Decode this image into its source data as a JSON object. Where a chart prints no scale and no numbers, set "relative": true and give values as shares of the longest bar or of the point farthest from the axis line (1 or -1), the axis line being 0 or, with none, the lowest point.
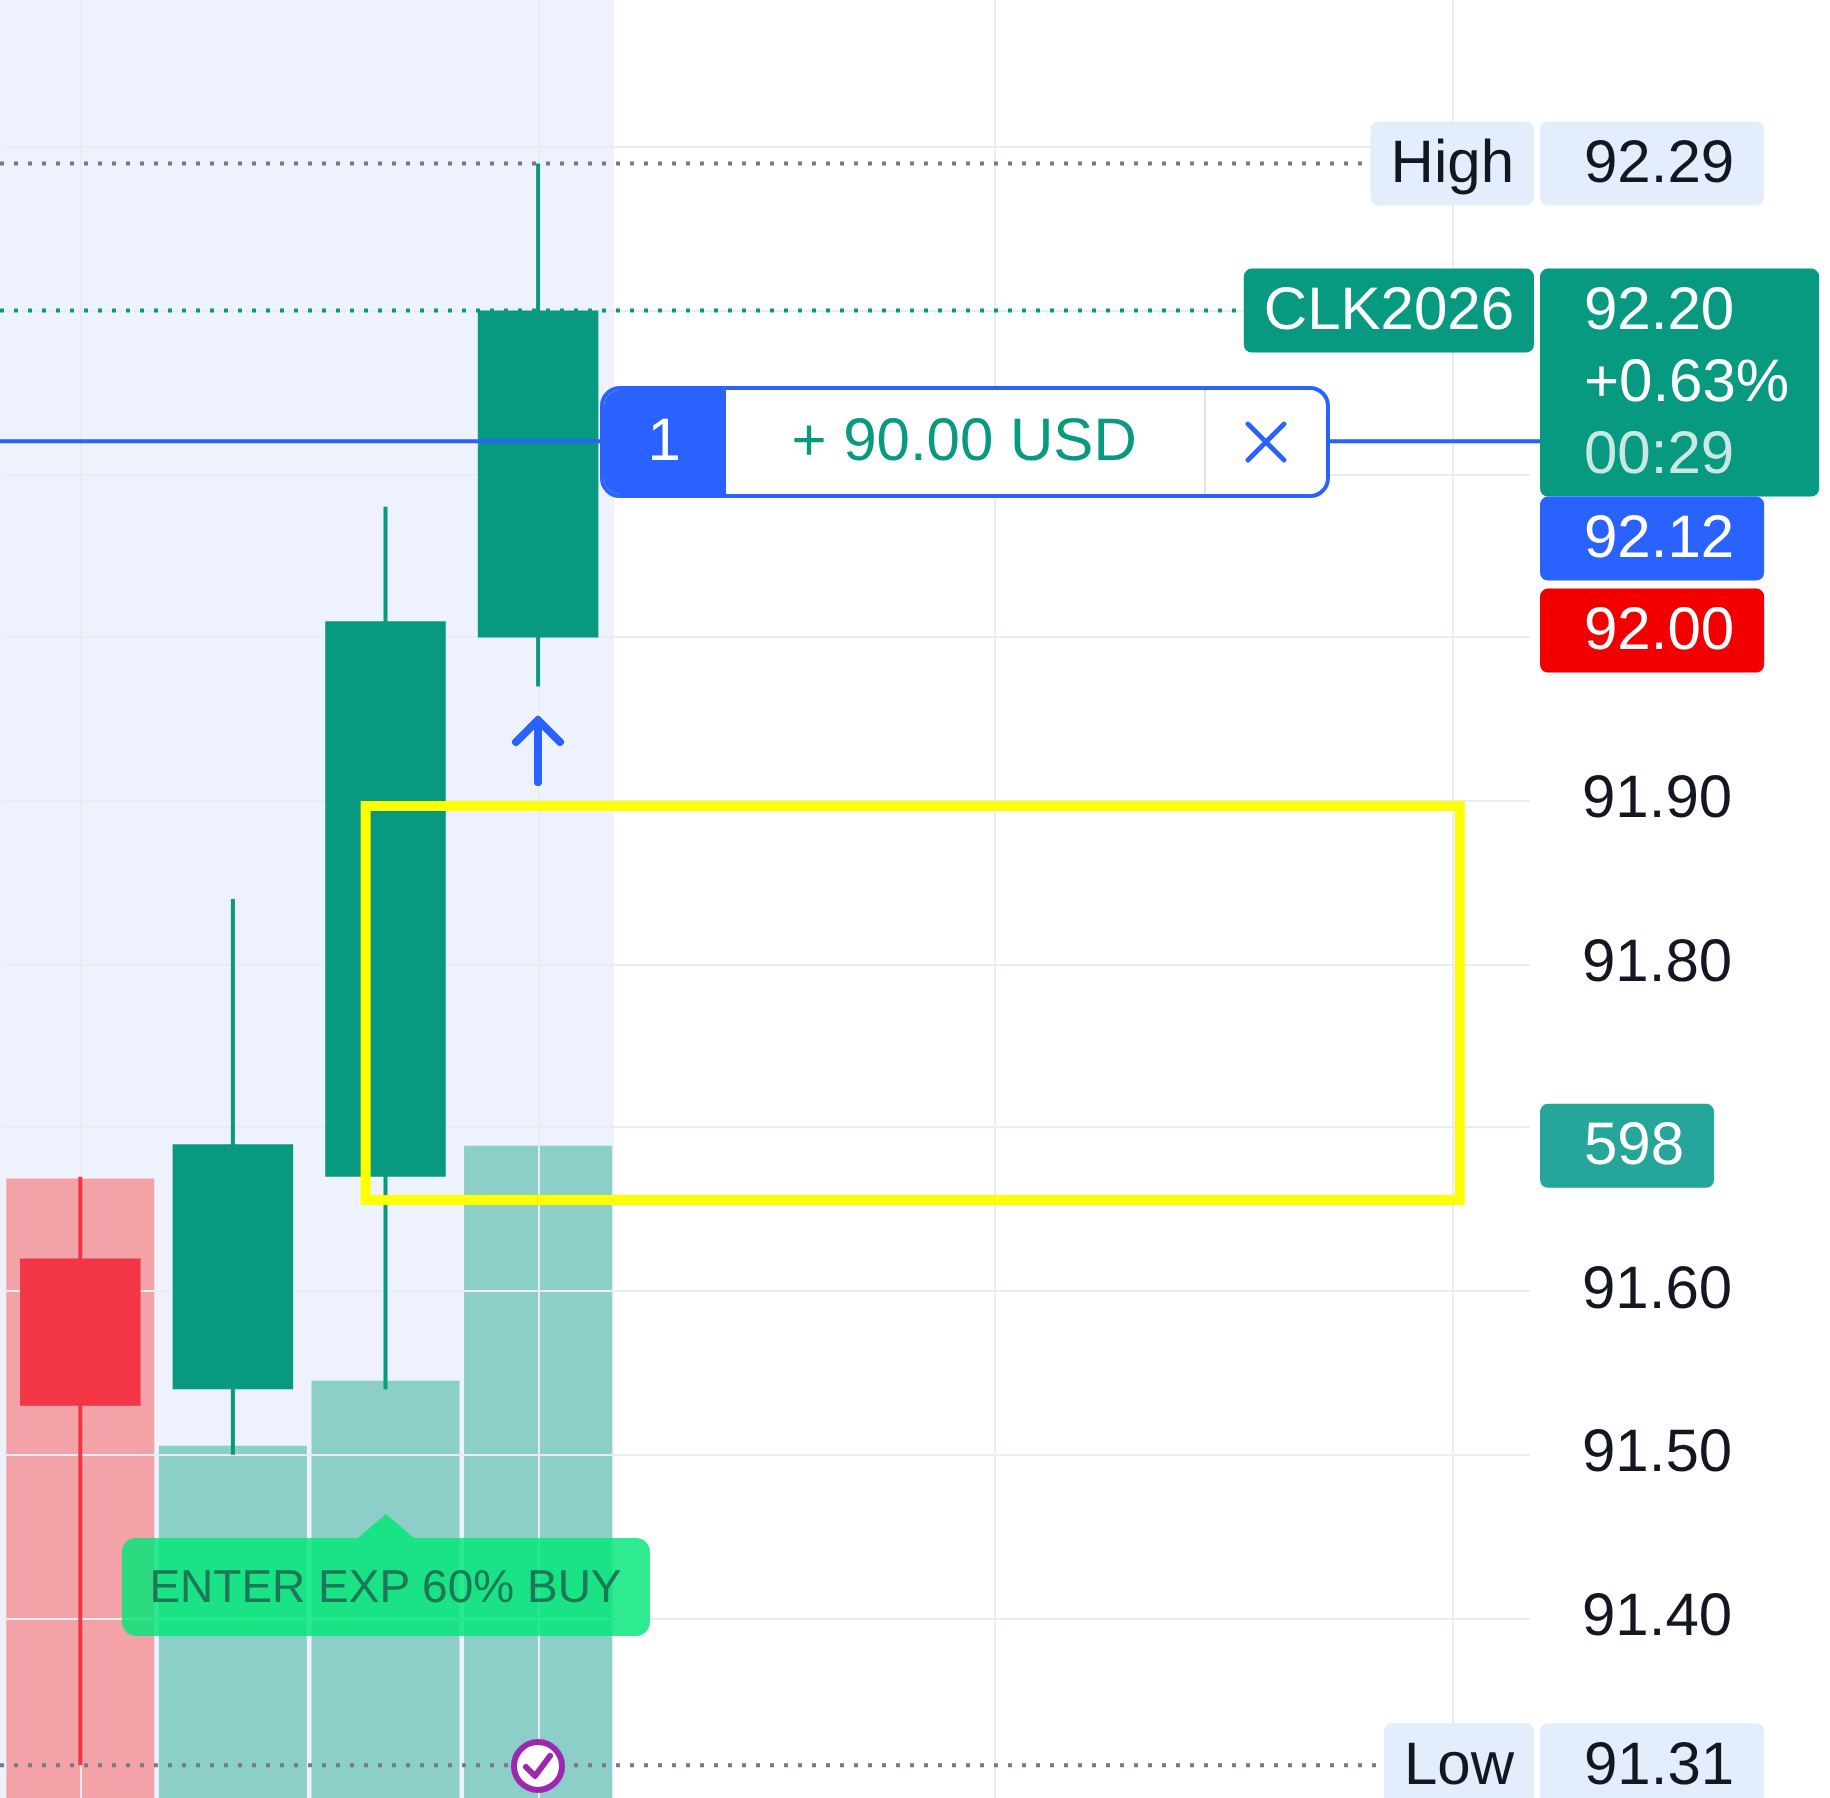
{
  "chart_data": [
    {
      "type": "candlestick",
      "categories": [
        null,
        null,
        null,
        null,
        null,
        null,
        null,
        null,
        null,
        null
      ],
      "ohlc": [
        [
          91.62,
          91.67,
          91.31,
          91.53
        ],
        [
          91.54,
          91.84,
          91.5,
          91.69
        ],
        [
          91.67,
          92.08,
          91.54,
          92.01
        ],
        [
          92.0,
          92.29,
          91.97,
          92.2
        ],
        null,
        null,
        null,
        null,
        null,
        null
      ],
      "colors": [
        "#f23645",
        "#089981",
        "#089981",
        "#089981",
        null,
        null,
        null,
        null,
        null,
        null
      ],
      "ylim": [
        91.29,
        92.39
      ],
      "yticks": [
        {
          "value": 91.4,
          "label": "91.40"
        },
        {
          "value": 91.5,
          "label": "91.50"
        },
        {
          "value": 91.6,
          "label": "91.60"
        },
        {
          "value": 91.7,
          "label": null
        },
        {
          "value": 91.8,
          "label": "91.80"
        },
        {
          "value": 91.9,
          "label": "91.90"
        },
        {
          "value": 92.0,
          "label": null
        },
        {
          "value": 92.1,
          "label": null
        },
        {
          "value": 92.2,
          "label": null
        },
        {
          "value": 92.3,
          "label": null
        }
      ],
      "grid": true,
      "tick_labels": "y",
      "ref_lines": [
        {
          "axis": "y",
          "value": 92.29,
          "label": "92.29",
          "color": "#787b86",
          "line_style": "dotted"
        },
        {
          "axis": "y",
          "value": 92.2,
          "label": "92.20",
          "color": "#089981",
          "line_style": "dotted"
        },
        {
          "axis": "y",
          "value": 92.12,
          "label": "92.12",
          "color": "#2962ff",
          "line_style": "solid"
        },
        {
          "axis": "y",
          "value": 91.31,
          "label": "91.31",
          "color": "#787b86",
          "line_style": "dotted"
        }
      ],
      "annotations": [
        {
          "text": "High",
          "y": 92.29
        },
        {
          "text": "CLK2026",
          "y": 92.2
        },
        "+0.63%",
        "00:29",
        {
          "text": "1",
          "y": 92.12
        },
        {
          "text": "+ 90.00 USD",
          "y": 92.12
        },
        "92.00",
        {
          "text": "Low",
          "y": 91.31
        },
        "ENTER EXP 60% BUY"
      ]
    },
    {
      "type": "bar",
      "relative": true,
      "categories": [
        null,
        null,
        null,
        null,
        null,
        null,
        null,
        null,
        null,
        null
      ],
      "values": [
        0.95,
        0.54,
        0.64,
        1,
        null,
        null,
        null,
        null,
        null,
        null
      ],
      "colors": [
        "#f3a3a8",
        "#8bcfc8",
        "#8bcfc8",
        "#8bcfc8",
        null,
        null,
        null,
        null,
        null,
        null
      ],
      "tick_labels": false,
      "annotations": [
        "598"
      ]
    }
  ]
}
